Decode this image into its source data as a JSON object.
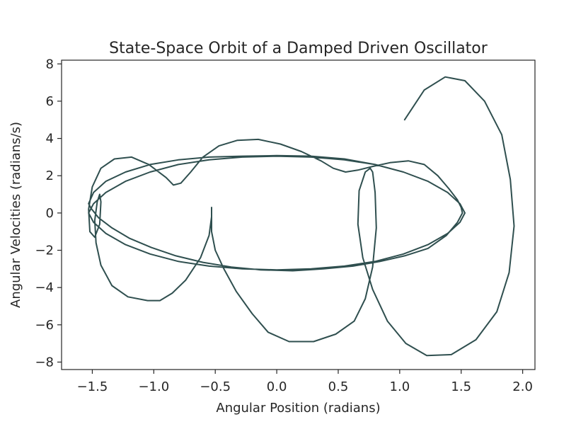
{
  "chart_data": {
    "type": "line",
    "title": "State-Space Orbit of a Damped Driven Oscillator",
    "xlabel": "Angular Position (radians)",
    "ylabel": "Angular Velocities (radians/s)",
    "xlim": [
      -1.75,
      2.1
    ],
    "ylim": [
      -8.4,
      8.2
    ],
    "xticks": [
      -1.5,
      -1.0,
      -0.5,
      0.0,
      0.5,
      1.0,
      1.5,
      2.0
    ],
    "xtick_labels": [
      "−1.5",
      "−1.0",
      "−0.5",
      "0.0",
      "0.5",
      "1.0",
      "1.5",
      "2.0"
    ],
    "yticks": [
      -8,
      -6,
      -4,
      -2,
      0,
      2,
      4,
      6,
      8
    ],
    "ytick_labels": [
      "−8",
      "−6",
      "−4",
      "−2",
      "0",
      "2",
      "4",
      "6",
      "8"
    ],
    "grid": false,
    "line_color": "#2f4f4f",
    "series": [
      {
        "x": [
          1.04,
          1.2,
          1.37,
          1.53,
          1.69,
          1.83,
          1.9,
          1.93,
          1.89,
          1.79,
          1.62,
          1.42,
          1.22,
          1.05,
          0.9,
          0.78,
          0.7,
          0.66,
          0.67,
          0.72,
          0.76,
          0.78,
          0.8,
          0.81,
          0.78,
          0.72,
          0.63,
          0.48,
          0.3,
          0.1,
          -0.07,
          -0.2,
          -0.33,
          -0.43,
          -0.5,
          -0.53,
          -0.53,
          -0.53,
          -0.53,
          -0.55,
          -0.62,
          -0.74,
          -0.85,
          -0.95,
          -1.05,
          -1.21,
          -1.34,
          -1.43,
          -1.47,
          -1.48,
          -1.46,
          -1.44,
          -1.43,
          -1.44,
          -1.48,
          -1.52,
          -1.53,
          -1.5,
          -1.43,
          -1.32,
          -1.18,
          -1.04,
          -0.9,
          -0.84,
          -0.78,
          -0.7,
          -0.6,
          -0.47,
          -0.32,
          -0.15,
          0.03,
          0.2,
          0.36,
          0.46,
          0.56,
          0.66,
          0.78,
          0.92,
          1.07,
          1.2,
          1.31,
          1.4,
          1.47,
          1.5,
          1.51,
          1.47,
          1.38,
          1.23,
          1.04,
          0.84,
          0.62,
          0.38,
          0.13,
          -0.13,
          -0.37,
          -0.6,
          -0.82,
          -1.02,
          -1.2,
          -1.34,
          -1.45,
          -1.51,
          -1.53,
          -1.49,
          -1.39,
          -1.23,
          -1.03,
          -0.8,
          -0.55,
          -0.28,
          0.0,
          0.28,
          0.55,
          0.8,
          1.03,
          1.23,
          1.39,
          1.49,
          1.53,
          1.49,
          1.39,
          1.23,
          1.03,
          0.8,
          0.55,
          0.28,
          0.0,
          -0.28,
          -0.55,
          -0.8,
          -1.03,
          -1.23,
          -1.39,
          -1.49,
          -1.53,
          -1.49,
          -1.39,
          -1.23,
          -1.03,
          -0.8,
          -0.55,
          -0.28,
          0.0,
          0.28,
          0.55,
          0.8,
          1.03,
          1.23,
          1.39,
          1.49,
          1.53
        ],
        "y": [
          5.0,
          6.6,
          7.3,
          7.1,
          6.0,
          4.2,
          1.8,
          -0.7,
          -3.2,
          -5.3,
          -6.8,
          -7.6,
          -7.65,
          -7.0,
          -5.8,
          -4.1,
          -2.4,
          -0.6,
          1.2,
          2.2,
          2.4,
          2.2,
          1.1,
          -0.8,
          -2.9,
          -4.6,
          -5.8,
          -6.5,
          -6.9,
          -6.9,
          -6.4,
          -5.4,
          -4.2,
          -3.0,
          -2.0,
          -1.0,
          -0.2,
          0.3,
          -0.2,
          -1.2,
          -2.4,
          -3.6,
          -4.3,
          -4.7,
          -4.7,
          -4.5,
          -3.9,
          -2.8,
          -1.6,
          -0.4,
          0.6,
          1.0,
          0.6,
          -0.6,
          -1.3,
          -1.0,
          0.2,
          1.4,
          2.4,
          2.9,
          3.0,
          2.6,
          1.9,
          1.5,
          1.6,
          2.2,
          3.0,
          3.6,
          3.9,
          3.95,
          3.7,
          3.3,
          2.8,
          2.4,
          2.2,
          2.3,
          2.5,
          2.7,
          2.8,
          2.6,
          2.0,
          1.3,
          0.7,
          0.3,
          0.0,
          -0.5,
          -1.2,
          -1.9,
          -2.3,
          -2.6,
          -2.85,
          -3.0,
          -3.1,
          -3.05,
          -2.9,
          -2.65,
          -2.3,
          -1.85,
          -1.35,
          -0.8,
          -0.25,
          0.25,
          0.5,
          1.1,
          1.7,
          2.2,
          2.6,
          2.85,
          3.0,
          3.05,
          3.08,
          3.05,
          2.9,
          2.6,
          2.2,
          1.7,
          1.1,
          0.5,
          0.0,
          -0.5,
          -1.1,
          -1.7,
          -2.2,
          -2.6,
          -2.85,
          -3.0,
          -3.05,
          -3.0,
          -2.85,
          -2.6,
          -2.2,
          -1.7,
          -1.1,
          -0.5,
          0.0,
          0.5,
          1.1,
          1.7,
          2.2,
          2.6,
          2.85,
          3.0,
          3.05,
          3.0,
          2.85,
          2.6,
          2.2,
          1.7,
          1.1,
          0.5,
          0.0
        ]
      }
    ]
  }
}
